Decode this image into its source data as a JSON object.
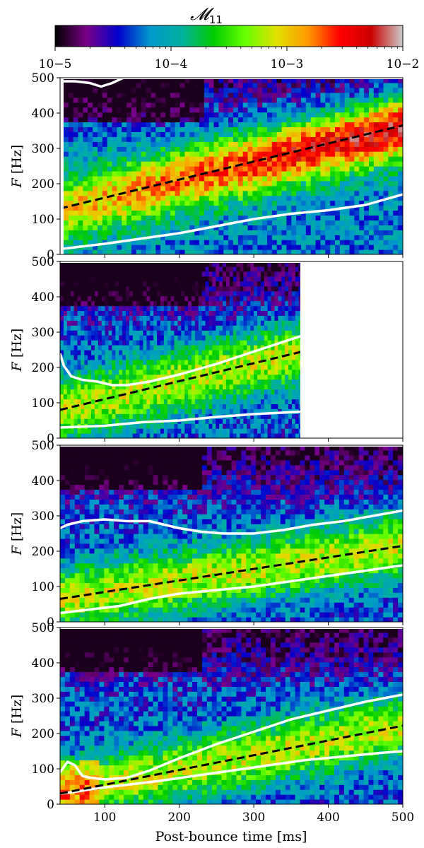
{
  "colorbar": {
    "title": "M11",
    "title_script": "𝓜",
    "title_sub": "11",
    "tick_labels": [
      "10−5",
      "10−4",
      "10−3",
      "10−2"
    ],
    "tick_values": [
      1e-05,
      0.0001,
      0.001,
      0.01
    ],
    "scale": "log",
    "colormap": "nipy_spectral",
    "colors": [
      "#000000",
      "#7a0088",
      "#0000cc",
      "#0099cc",
      "#00b0a0",
      "#00cc00",
      "#66ff00",
      "#e0e000",
      "#ff9900",
      "#ff0000",
      "#cc0000",
      "#cccccc"
    ]
  },
  "x_axis": {
    "label": "Post-bounce time [ms]",
    "tick_labels": [
      "100",
      "200",
      "300",
      "400",
      "500"
    ],
    "tick_values": [
      100,
      200,
      300,
      400,
      500
    ],
    "range": [
      40,
      500
    ]
  },
  "y_axis": {
    "label": "F [Hz]",
    "label_italic": "F",
    "label_unit": " [Hz]",
    "tick_labels": [
      "0",
      "100",
      "200",
      "300",
      "400",
      "500"
    ],
    "tick_values": [
      0,
      100,
      200,
      300,
      400,
      500
    ],
    "range": [
      0,
      500
    ]
  },
  "chart_data": [
    {
      "type": "heatmap",
      "panel": 1,
      "x_range": [
        40,
        500
      ],
      "y_range": [
        0,
        500
      ],
      "dashed_line": {
        "x": [
          40,
          500
        ],
        "y": [
          130,
          365
        ]
      },
      "white_curves": [
        {
          "x": [
            40,
            100,
            150,
            200,
            250,
            300,
            350,
            400,
            450,
            500
          ],
          "y": [
            15,
            30,
            45,
            60,
            80,
            100,
            115,
            125,
            140,
            170
          ]
        },
        {
          "x": [
            40,
            60,
            80,
            95,
            110,
            125
          ],
          "y": [
            490,
            490,
            485,
            475,
            485,
            500
          ]
        }
      ]
    },
    {
      "type": "heatmap",
      "panel": 2,
      "x_range": [
        40,
        500
      ],
      "y_range": [
        0,
        500
      ],
      "data_x_max": 365,
      "dashed_line": {
        "x": [
          40,
          365
        ],
        "y": [
          80,
          245
        ]
      },
      "white_curves": [
        {
          "x": [
            40,
            45,
            55,
            70,
            90,
            110,
            130,
            160,
            200,
            250,
            300,
            365
          ],
          "y": [
            240,
            205,
            175,
            165,
            160,
            150,
            150,
            160,
            180,
            210,
            245,
            290
          ]
        },
        {
          "x": [
            40,
            100,
            150,
            200,
            250,
            300,
            365
          ],
          "y": [
            30,
            35,
            45,
            50,
            60,
            68,
            75
          ]
        }
      ]
    },
    {
      "type": "heatmap",
      "panel": 3,
      "x_range": [
        40,
        500
      ],
      "y_range": [
        0,
        500
      ],
      "dashed_line": {
        "x": [
          40,
          500
        ],
        "y": [
          65,
          215
        ]
      },
      "white_curves": [
        {
          "x": [
            40,
            50,
            70,
            100,
            130,
            160,
            180,
            200,
            230,
            260,
            300,
            340,
            380,
            420,
            460,
            500
          ],
          "y": [
            265,
            275,
            285,
            290,
            285,
            285,
            275,
            265,
            255,
            250,
            250,
            260,
            275,
            285,
            300,
            315
          ]
        },
        {
          "x": [
            40,
            80,
            120,
            160,
            200,
            250,
            300,
            350,
            400,
            450,
            500
          ],
          "y": [
            25,
            35,
            45,
            65,
            80,
            90,
            100,
            115,
            130,
            145,
            160
          ]
        }
      ]
    },
    {
      "type": "heatmap",
      "panel": 4,
      "x_range": [
        40,
        500
      ],
      "y_range": [
        0,
        500
      ],
      "dashed_line": {
        "x": [
          40,
          500
        ],
        "y": [
          30,
          222
        ]
      },
      "white_curves": [
        {
          "x": [
            40,
            50,
            60,
            70,
            80,
            100,
            130,
            160,
            200,
            250,
            300,
            350,
            400,
            450,
            500
          ],
          "y": [
            90,
            120,
            110,
            80,
            75,
            70,
            75,
            95,
            130,
            170,
            205,
            240,
            265,
            290,
            310
          ]
        },
        {
          "x": [
            40,
            60,
            90,
            130,
            170,
            220,
            270,
            320,
            370,
            420,
            470,
            500
          ],
          "y": [
            30,
            35,
            45,
            55,
            65,
            80,
            95,
            110,
            125,
            135,
            145,
            150
          ]
        }
      ]
    }
  ]
}
